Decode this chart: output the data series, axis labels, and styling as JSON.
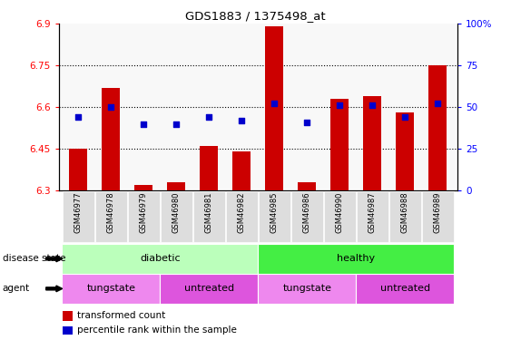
{
  "title": "GDS1883 / 1375498_at",
  "samples": [
    "GSM46977",
    "GSM46978",
    "GSM46979",
    "GSM46980",
    "GSM46981",
    "GSM46982",
    "GSM46985",
    "GSM46986",
    "GSM46990",
    "GSM46987",
    "GSM46988",
    "GSM46989"
  ],
  "bar_values": [
    6.45,
    6.67,
    6.32,
    6.33,
    6.46,
    6.44,
    6.89,
    6.33,
    6.63,
    6.64,
    6.58,
    6.75
  ],
  "percentile_values": [
    44,
    50,
    40,
    40,
    44,
    42,
    52,
    41,
    51,
    51,
    44,
    52
  ],
  "ylim_left": [
    6.3,
    6.9
  ],
  "ylim_right": [
    0,
    100
  ],
  "yticks_left": [
    6.3,
    6.45,
    6.6,
    6.75,
    6.9
  ],
  "yticks_right": [
    0,
    25,
    50,
    75,
    100
  ],
  "ytick_labels_left": [
    "6.3",
    "6.45",
    "6.6",
    "6.75",
    "6.9"
  ],
  "ytick_labels_right": [
    "0",
    "25",
    "50",
    "75",
    "100%"
  ],
  "hlines": [
    6.45,
    6.6,
    6.75
  ],
  "bar_color": "#cc0000",
  "percentile_color": "#0000cc",
  "bar_bottom": 6.3,
  "disease_state_color_diabetic": "#bbffbb",
  "disease_state_color_healthy": "#44ee44",
  "agent_color_light": "#ee88ee",
  "agent_color_dark": "#dd55dd",
  "tick_bg_color": "#cccccc",
  "plot_bg_color": "#f8f8f8",
  "legend_bar_label": "transformed count",
  "legend_pct_label": "percentile rank within the sample"
}
